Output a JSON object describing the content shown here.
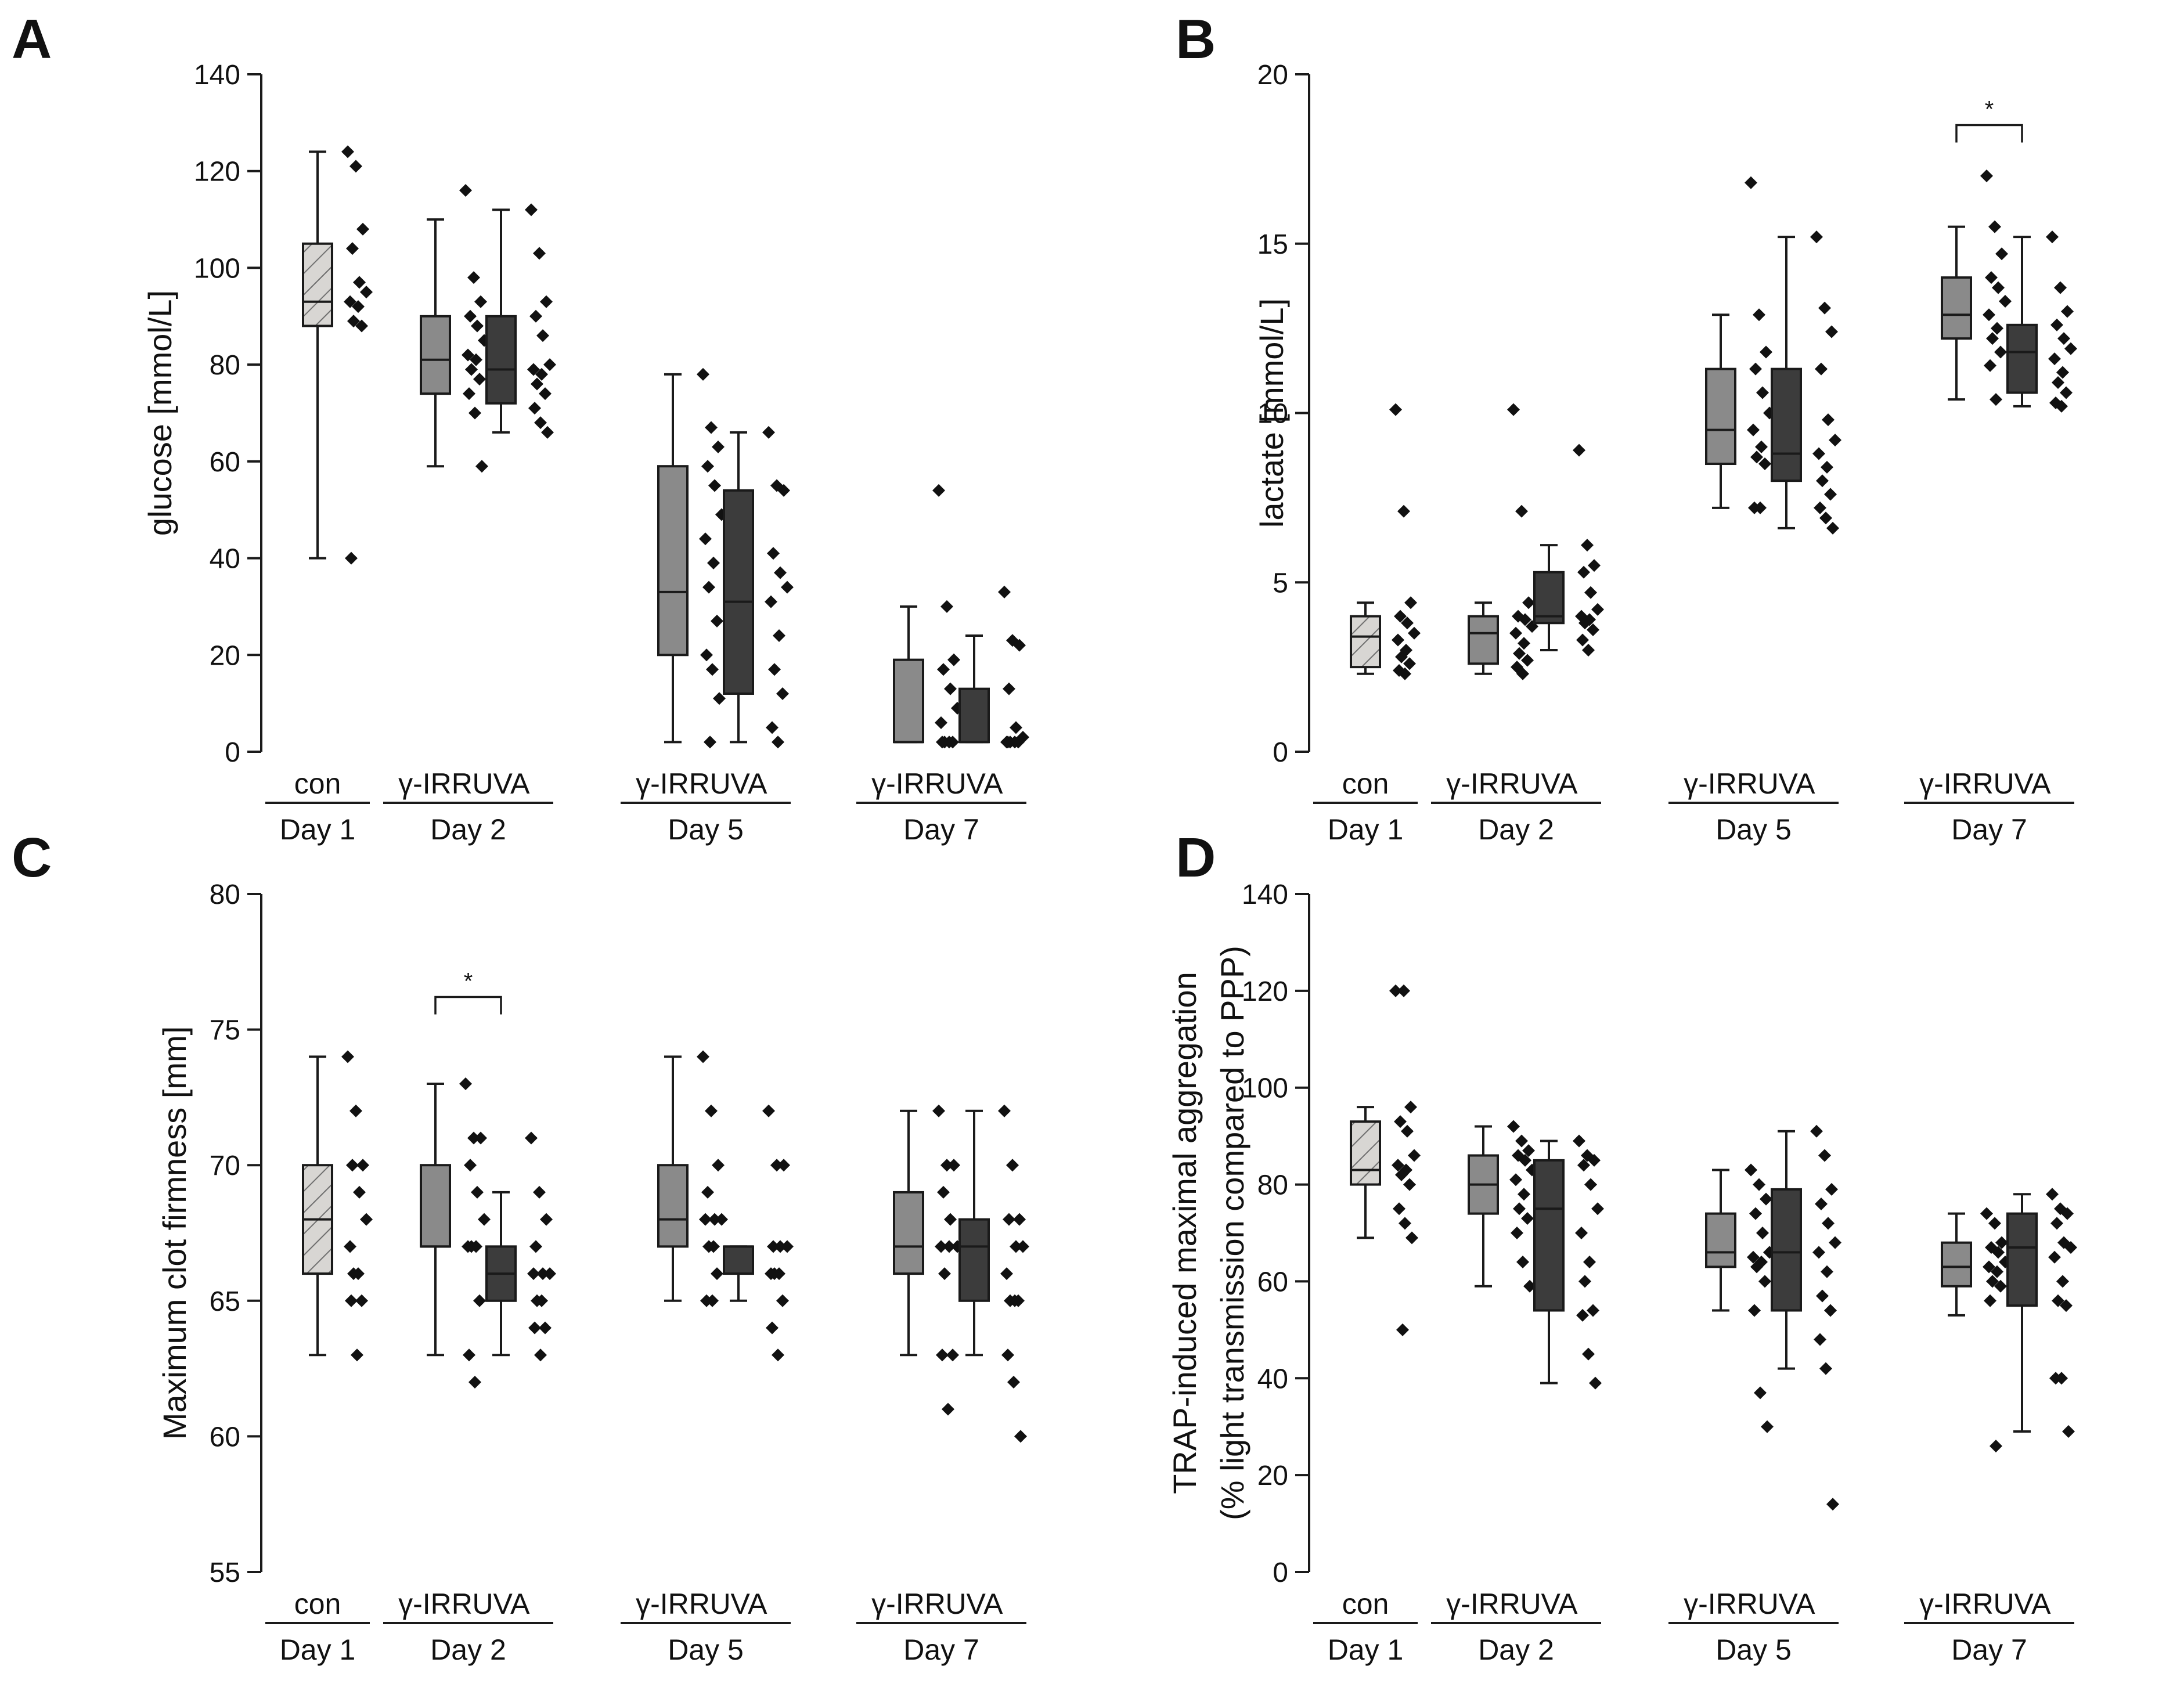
{
  "colors": {
    "con_fill": "#d8d6d3",
    "hatch": "#6f6f6f",
    "girr_fill": "#8a8a8a",
    "uva_fill": "#3c3c3c",
    "line": "#1a1a1a",
    "point": "#111111"
  },
  "chart_data": [
    {
      "panel": "A",
      "type": "box",
      "title": "",
      "ylabel": [
        "glucose [mmol/L]"
      ],
      "ylim": [
        0,
        140
      ],
      "yticks": [
        0,
        20,
        40,
        60,
        80,
        100,
        120,
        140
      ],
      "tick_labels": [
        "0",
        "20",
        "40",
        "60",
        "80",
        "100",
        "120",
        "140"
      ],
      "groups": [
        "Day 1",
        "Day 2",
        "Day 5",
        "Day 7"
      ],
      "series": [
        {
          "name": "con",
          "group": "Day 1",
          "style": "con",
          "whisker_low": 40,
          "q1": 88,
          "median": 93,
          "q3": 105,
          "whisker_high": 124,
          "points": [
            124,
            121,
            108,
            104,
            97,
            95,
            93,
            92,
            89,
            88,
            40
          ]
        },
        {
          "name": "γ-IRR",
          "group": "Day 2",
          "style": "girr",
          "whisker_low": 59,
          "q1": 74,
          "median": 81,
          "q3": 90,
          "whisker_high": 110,
          "points": [
            116,
            98,
            93,
            90,
            88,
            85,
            82,
            81,
            79,
            77,
            74,
            70,
            59
          ]
        },
        {
          "name": "UVA",
          "group": "Day 2",
          "style": "uva",
          "whisker_low": 66,
          "q1": 72,
          "median": 79,
          "q3": 90,
          "whisker_high": 112,
          "points": [
            112,
            103,
            93,
            90,
            86,
            80,
            79,
            78,
            76,
            74,
            71,
            68,
            66
          ]
        },
        {
          "name": "γ-IRR",
          "group": "Day 5",
          "style": "girr",
          "whisker_low": 2,
          "q1": 20,
          "median": 33,
          "q3": 59,
          "whisker_high": 78,
          "points": [
            78,
            67,
            63,
            59,
            55,
            49,
            44,
            39,
            34,
            27,
            20,
            17,
            11,
            2
          ]
        },
        {
          "name": "UVA",
          "group": "Day 5",
          "style": "uva",
          "whisker_low": 2,
          "q1": 12,
          "median": 31,
          "q3": 54,
          "whisker_high": 66,
          "points": [
            66,
            55,
            54,
            41,
            37,
            34,
            31,
            24,
            17,
            12,
            5,
            2
          ]
        },
        {
          "name": "γ-IRR",
          "group": "Day 7",
          "style": "girr",
          "whisker_low": 2,
          "q1": 2,
          "median": 2,
          "q3": 19,
          "whisker_high": 30,
          "points": [
            54,
            30,
            19,
            17,
            13,
            9,
            6,
            2,
            2,
            2,
            2
          ]
        },
        {
          "name": "UVA",
          "group": "Day 7",
          "style": "uva",
          "whisker_low": 2,
          "q1": 2,
          "median": 2,
          "q3": 13,
          "whisker_high": 24,
          "points": [
            33,
            23,
            22,
            13,
            5,
            3,
            2,
            2,
            2,
            2,
            2
          ]
        }
      ],
      "significance": []
    },
    {
      "panel": "B",
      "type": "box",
      "title": "",
      "ylabel": [
        "lactate [mmol/L]"
      ],
      "ylim": [
        0,
        20
      ],
      "yticks": [
        0,
        5,
        10,
        15,
        20
      ],
      "tick_labels": [
        "0",
        "5",
        "10",
        "15",
        "20"
      ],
      "groups": [
        "Day 1",
        "Day 2",
        "Day 5",
        "Day 7"
      ],
      "series": [
        {
          "name": "con",
          "group": "Day 1",
          "style": "con",
          "whisker_low": 2.3,
          "q1": 2.5,
          "median": 3.4,
          "q3": 4.0,
          "whisker_high": 4.4,
          "points": [
            10.1,
            7.1,
            4.4,
            4.0,
            3.8,
            3.5,
            3.3,
            3.0,
            2.8,
            2.6,
            2.4,
            2.3
          ]
        },
        {
          "name": "γ-IRR",
          "group": "Day 2",
          "style": "girr",
          "whisker_low": 2.3,
          "q1": 2.6,
          "median": 3.5,
          "q3": 4.0,
          "whisker_high": 4.4,
          "points": [
            10.1,
            7.1,
            4.4,
            4.0,
            3.9,
            3.7,
            3.5,
            3.2,
            2.9,
            2.7,
            2.5,
            2.3
          ]
        },
        {
          "name": "UVA",
          "group": "Day 2",
          "style": "uva",
          "whisker_low": 3.0,
          "q1": 3.8,
          "median": 4.0,
          "q3": 5.3,
          "whisker_high": 6.1,
          "points": [
            8.9,
            6.1,
            5.5,
            5.3,
            4.7,
            4.2,
            4.0,
            3.9,
            3.8,
            3.6,
            3.3,
            3.0
          ]
        },
        {
          "name": "γ-IRR",
          "group": "Day 5",
          "style": "girr",
          "whisker_low": 7.2,
          "q1": 8.5,
          "median": 9.5,
          "q3": 11.3,
          "whisker_high": 12.9,
          "points": [
            16.8,
            12.9,
            11.8,
            11.3,
            10.6,
            10.0,
            9.5,
            9.0,
            8.7,
            8.5,
            7.2,
            7.2
          ]
        },
        {
          "name": "UVA",
          "group": "Day 5",
          "style": "uva",
          "whisker_low": 6.6,
          "q1": 8.0,
          "median": 8.8,
          "q3": 11.3,
          "whisker_high": 15.2,
          "points": [
            15.2,
            13.1,
            12.4,
            11.3,
            9.8,
            9.2,
            8.8,
            8.4,
            8.0,
            7.6,
            7.2,
            6.9,
            6.6
          ]
        },
        {
          "name": "γ-IRR",
          "group": "Day 7",
          "style": "girr",
          "whisker_low": 10.4,
          "q1": 12.2,
          "median": 12.9,
          "q3": 14.0,
          "whisker_high": 15.5,
          "points": [
            17.0,
            15.5,
            14.7,
            14.0,
            13.7,
            13.3,
            12.9,
            12.5,
            12.2,
            11.8,
            11.4,
            10.4
          ]
        },
        {
          "name": "UVA",
          "group": "Day 7",
          "style": "uva",
          "whisker_low": 10.2,
          "q1": 10.6,
          "median": 11.8,
          "q3": 12.6,
          "whisker_high": 15.2,
          "points": [
            15.2,
            13.7,
            13.0,
            12.6,
            12.2,
            11.9,
            11.6,
            11.2,
            10.9,
            10.6,
            10.3,
            10.2
          ]
        }
      ],
      "significance": [
        {
          "group": "Day 7",
          "y": 18.5,
          "label": "*"
        }
      ]
    },
    {
      "panel": "C",
      "type": "box",
      "title": "",
      "ylabel": [
        "Maximum clot firmness [mm]"
      ],
      "ylim": [
        55,
        80
      ],
      "yticks": [
        55,
        60,
        65,
        70,
        75,
        80
      ],
      "tick_labels": [
        "55",
        "60",
        "65",
        "70",
        "75",
        "80"
      ],
      "groups": [
        "Day 1",
        "Day 2",
        "Day 5",
        "Day 7"
      ],
      "series": [
        {
          "name": "con",
          "group": "Day 1",
          "style": "con",
          "whisker_low": 63,
          "q1": 66,
          "median": 68,
          "q3": 70,
          "whisker_high": 74,
          "points": [
            74,
            72,
            70,
            70,
            69,
            68,
            67,
            66,
            66,
            65,
            65,
            63
          ]
        },
        {
          "name": "γ-IRR",
          "group": "Day 2",
          "style": "girr",
          "whisker_low": 63,
          "q1": 67,
          "median": 67,
          "q3": 70,
          "whisker_high": 73,
          "points": [
            73,
            71,
            71,
            70,
            69,
            68,
            67,
            67,
            67,
            65,
            63,
            62
          ]
        },
        {
          "name": "UVA",
          "group": "Day 2",
          "style": "uva",
          "whisker_low": 63,
          "q1": 65,
          "median": 66,
          "q3": 67,
          "whisker_high": 69,
          "points": [
            71,
            69,
            68,
            67,
            66,
            66,
            66,
            65,
            65,
            64,
            64,
            63
          ]
        },
        {
          "name": "γ-IRR",
          "group": "Day 5",
          "style": "girr",
          "whisker_low": 65,
          "q1": 67,
          "median": 68,
          "q3": 70,
          "whisker_high": 74,
          "points": [
            74,
            72,
            70,
            69,
            68,
            68,
            68,
            67,
            67,
            66,
            65,
            65
          ]
        },
        {
          "name": "UVA",
          "group": "Day 5",
          "style": "uva",
          "whisker_low": 65,
          "q1": 66,
          "median": 67,
          "q3": 67,
          "whisker_high": 67,
          "points": [
            72,
            70,
            70,
            67,
            67,
            67,
            66,
            66,
            66,
            65,
            64,
            63
          ]
        },
        {
          "name": "γ-IRR",
          "group": "Day 7",
          "style": "girr",
          "whisker_low": 63,
          "q1": 66,
          "median": 67,
          "q3": 69,
          "whisker_high": 72,
          "points": [
            72,
            70,
            70,
            69,
            68,
            67,
            67,
            67,
            66,
            63,
            63,
            61
          ]
        },
        {
          "name": "UVA",
          "group": "Day 7",
          "style": "uva",
          "whisker_low": 63,
          "q1": 65,
          "median": 67,
          "q3": 68,
          "whisker_high": 72,
          "points": [
            72,
            70,
            68,
            68,
            67,
            67,
            66,
            65,
            65,
            65,
            63,
            62,
            60
          ]
        }
      ],
      "significance": [
        {
          "group": "Day 2",
          "y": 76.2,
          "label": "*"
        }
      ]
    },
    {
      "panel": "D",
      "type": "box",
      "title": "",
      "ylabel": [
        "TRAP-induced maximal aggregation",
        "(% light transmission compared to PPP)"
      ],
      "ylim": [
        0,
        140
      ],
      "yticks": [
        0,
        20,
        40,
        60,
        80,
        100,
        120,
        140
      ],
      "tick_labels": [
        "0",
        "20",
        "40",
        "60",
        "80",
        "100",
        "120",
        "140"
      ],
      "groups": [
        "Day 1",
        "Day 2",
        "Day 5",
        "Day 7"
      ],
      "series": [
        {
          "name": "con",
          "group": "Day 1",
          "style": "con",
          "whisker_low": 69,
          "q1": 80,
          "median": 83,
          "q3": 93,
          "whisker_high": 96,
          "points": [
            120,
            120,
            96,
            93,
            91,
            86,
            84,
            83,
            82,
            80,
            75,
            72,
            69,
            50
          ]
        },
        {
          "name": "γ-IRR",
          "group": "Day 2",
          "style": "girr",
          "whisker_low": 59,
          "q1": 74,
          "median": 80,
          "q3": 86,
          "whisker_high": 92,
          "points": [
            92,
            89,
            87,
            86,
            85,
            83,
            81,
            78,
            75,
            73,
            70,
            64,
            59
          ]
        },
        {
          "name": "UVA",
          "group": "Day 2",
          "style": "uva",
          "whisker_low": 39,
          "q1": 54,
          "median": 75,
          "q3": 85,
          "whisker_high": 89,
          "points": [
            89,
            86,
            85,
            84,
            80,
            75,
            70,
            64,
            60,
            54,
            53,
            45,
            39
          ]
        },
        {
          "name": "γ-IRR",
          "group": "Day 5",
          "style": "girr",
          "whisker_low": 54,
          "q1": 63,
          "median": 66,
          "q3": 74,
          "whisker_high": 83,
          "points": [
            83,
            80,
            77,
            74,
            70,
            66,
            65,
            64,
            63,
            60,
            54,
            37,
            30
          ]
        },
        {
          "name": "UVA",
          "group": "Day 5",
          "style": "uva",
          "whisker_low": 42,
          "q1": 54,
          "median": 66,
          "q3": 79,
          "whisker_high": 91,
          "points": [
            91,
            86,
            79,
            76,
            72,
            68,
            66,
            62,
            57,
            54,
            48,
            42,
            14
          ]
        },
        {
          "name": "γ-IRR",
          "group": "Day 7",
          "style": "girr",
          "whisker_low": 53,
          "q1": 59,
          "median": 63,
          "q3": 68,
          "whisker_high": 74,
          "points": [
            74,
            72,
            68,
            67,
            66,
            64,
            63,
            62,
            60,
            59,
            56,
            26
          ]
        },
        {
          "name": "UVA",
          "group": "Day 7",
          "style": "uva",
          "whisker_low": 29,
          "q1": 55,
          "median": 67,
          "q3": 74,
          "whisker_high": 78,
          "points": [
            78,
            75,
            74,
            72,
            68,
            67,
            65,
            60,
            56,
            55,
            40,
            40,
            29
          ]
        }
      ],
      "significance": []
    }
  ]
}
